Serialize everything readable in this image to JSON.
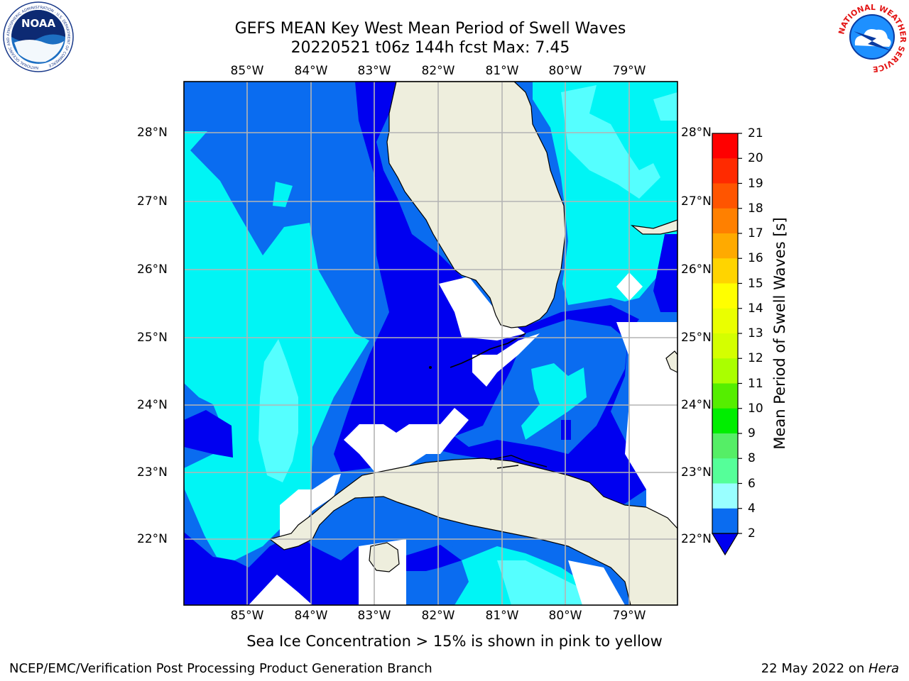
{
  "header": {
    "title_line1": "GEFS MEAN Key West Mean Period of Swell Waves",
    "title_line2": "20220521 t06z 144h fcst    Max: 7.45"
  },
  "logos": {
    "noaa_text": "NOAA",
    "noaa_ring_text": "NATIONAL OCEANIC AND ATMOSPHERIC ADMINISTRATION · U.S. DEPARTMENT OF COMMERCE",
    "nws_ring_text": "NATIONAL WEATHER SERVICE"
  },
  "map": {
    "lon_labels": [
      "85°W",
      "84°W",
      "83°W",
      "82°W",
      "81°W",
      "80°W",
      "79°W"
    ],
    "lat_labels": [
      "28°N",
      "27°N",
      "26°N",
      "25°N",
      "24°N",
      "23°N",
      "22°N"
    ],
    "colors": {
      "land": "#eeeedd",
      "missing": "#ffffff",
      "c2_4": "#0000f0",
      "c4_6": "#0a6cf0",
      "c6_8": "#00f5f5",
      "c8_9": "#55ffff",
      "grid": "#b4b4b4"
    }
  },
  "colorbar": {
    "label": "Mean Period of Swell Waves [s]",
    "ticks": [
      "21",
      "20",
      "19",
      "18",
      "17",
      "16",
      "15",
      "14",
      "13",
      "12",
      "11",
      "10",
      "9",
      "8",
      "6",
      "4",
      "2"
    ],
    "colors": [
      "#ff0000",
      "#ff2a00",
      "#ff5500",
      "#ff8000",
      "#ffaa00",
      "#ffd400",
      "#ffff00",
      "#eaff00",
      "#d4ff00",
      "#aaff00",
      "#55ee00",
      "#00ee00",
      "#55ee66",
      "#55ff99",
      "#99ffff",
      "#55ffff",
      "#00f5f5",
      "#0a6cf0"
    ],
    "under_color": "#0000f0"
  },
  "notes": {
    "sea_ice": "Sea Ice Concentration > 15% is shown in pink to yellow"
  },
  "footer": {
    "left": "NCEP/EMC/Verification Post Processing Product Generation Branch",
    "right_prefix": "22 May 2022 on ",
    "right_host": "Hera"
  }
}
